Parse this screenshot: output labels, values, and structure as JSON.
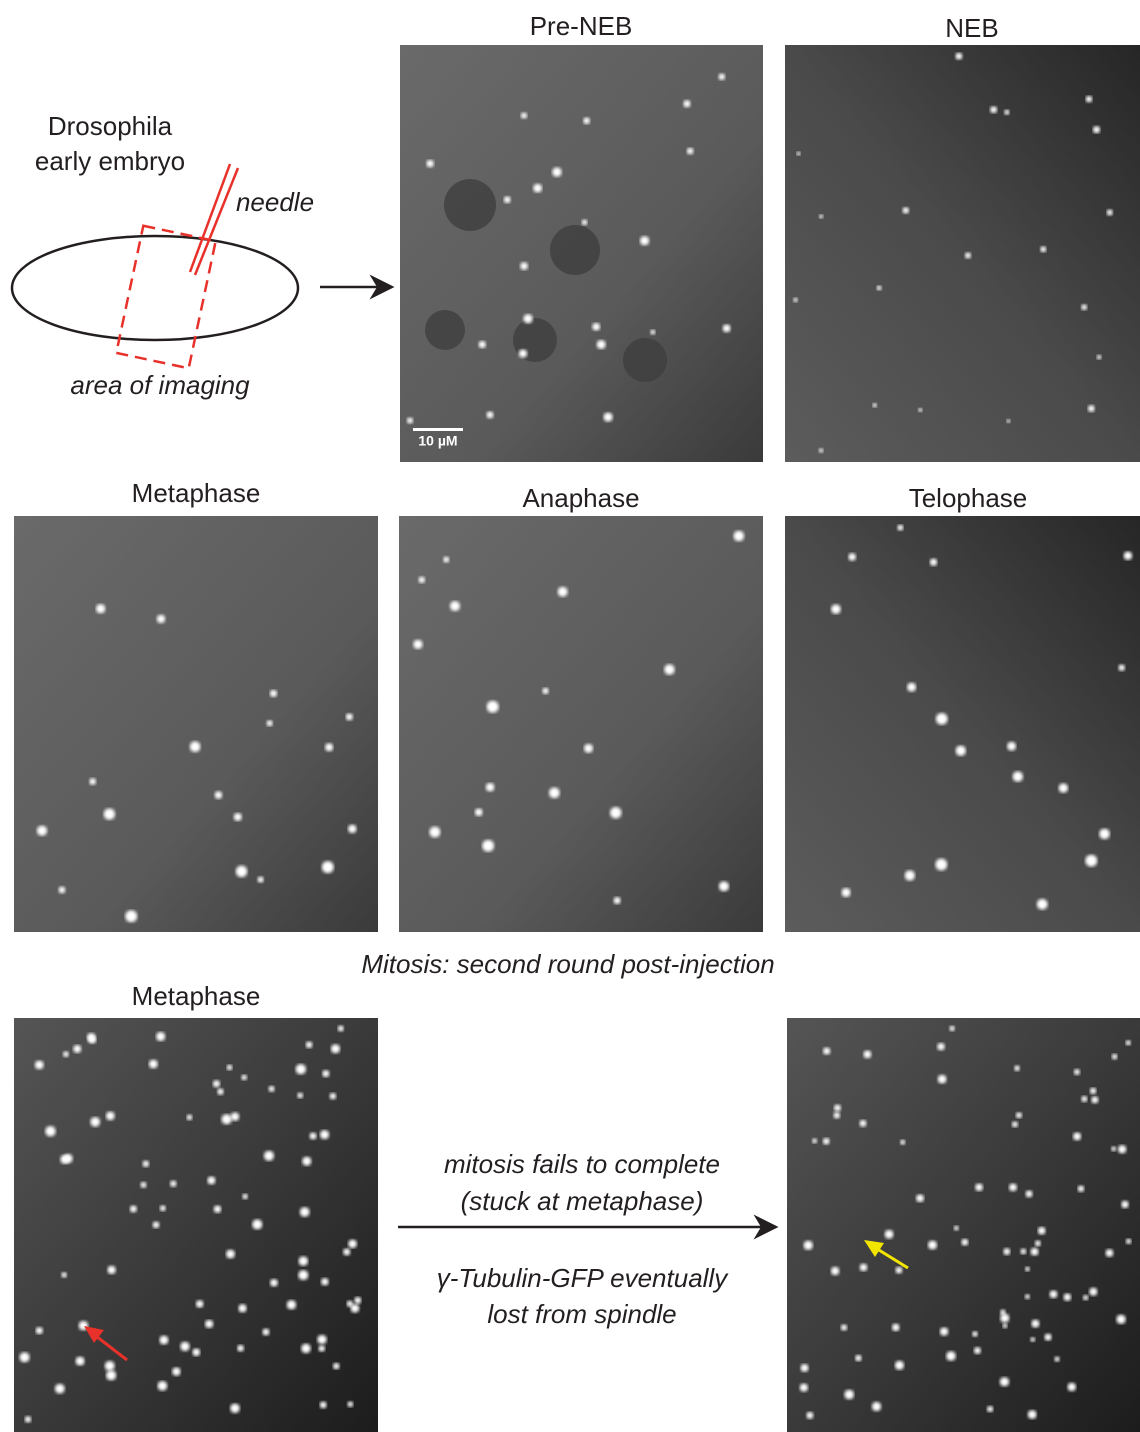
{
  "schematic": {
    "organism": "Drosophila",
    "stage": "early embryo",
    "needle": "needle",
    "area": "area of imaging"
  },
  "panels": [
    {
      "title": "Pre-NEB",
      "scale_bar": "10 µM"
    },
    {
      "title": "NEB"
    },
    {
      "title": "Metaphase"
    },
    {
      "title": "Anaphase"
    },
    {
      "title": "Telophase"
    },
    {
      "title": "Metaphase"
    }
  ],
  "section_caption": "Mitosis: second round post-injection",
  "transition": {
    "line1": "mitosis fails to complete",
    "line2": "(stuck at metaphase)",
    "line3": "γ-Tubulin-GFP eventually",
    "line4": "lost from spindle"
  }
}
